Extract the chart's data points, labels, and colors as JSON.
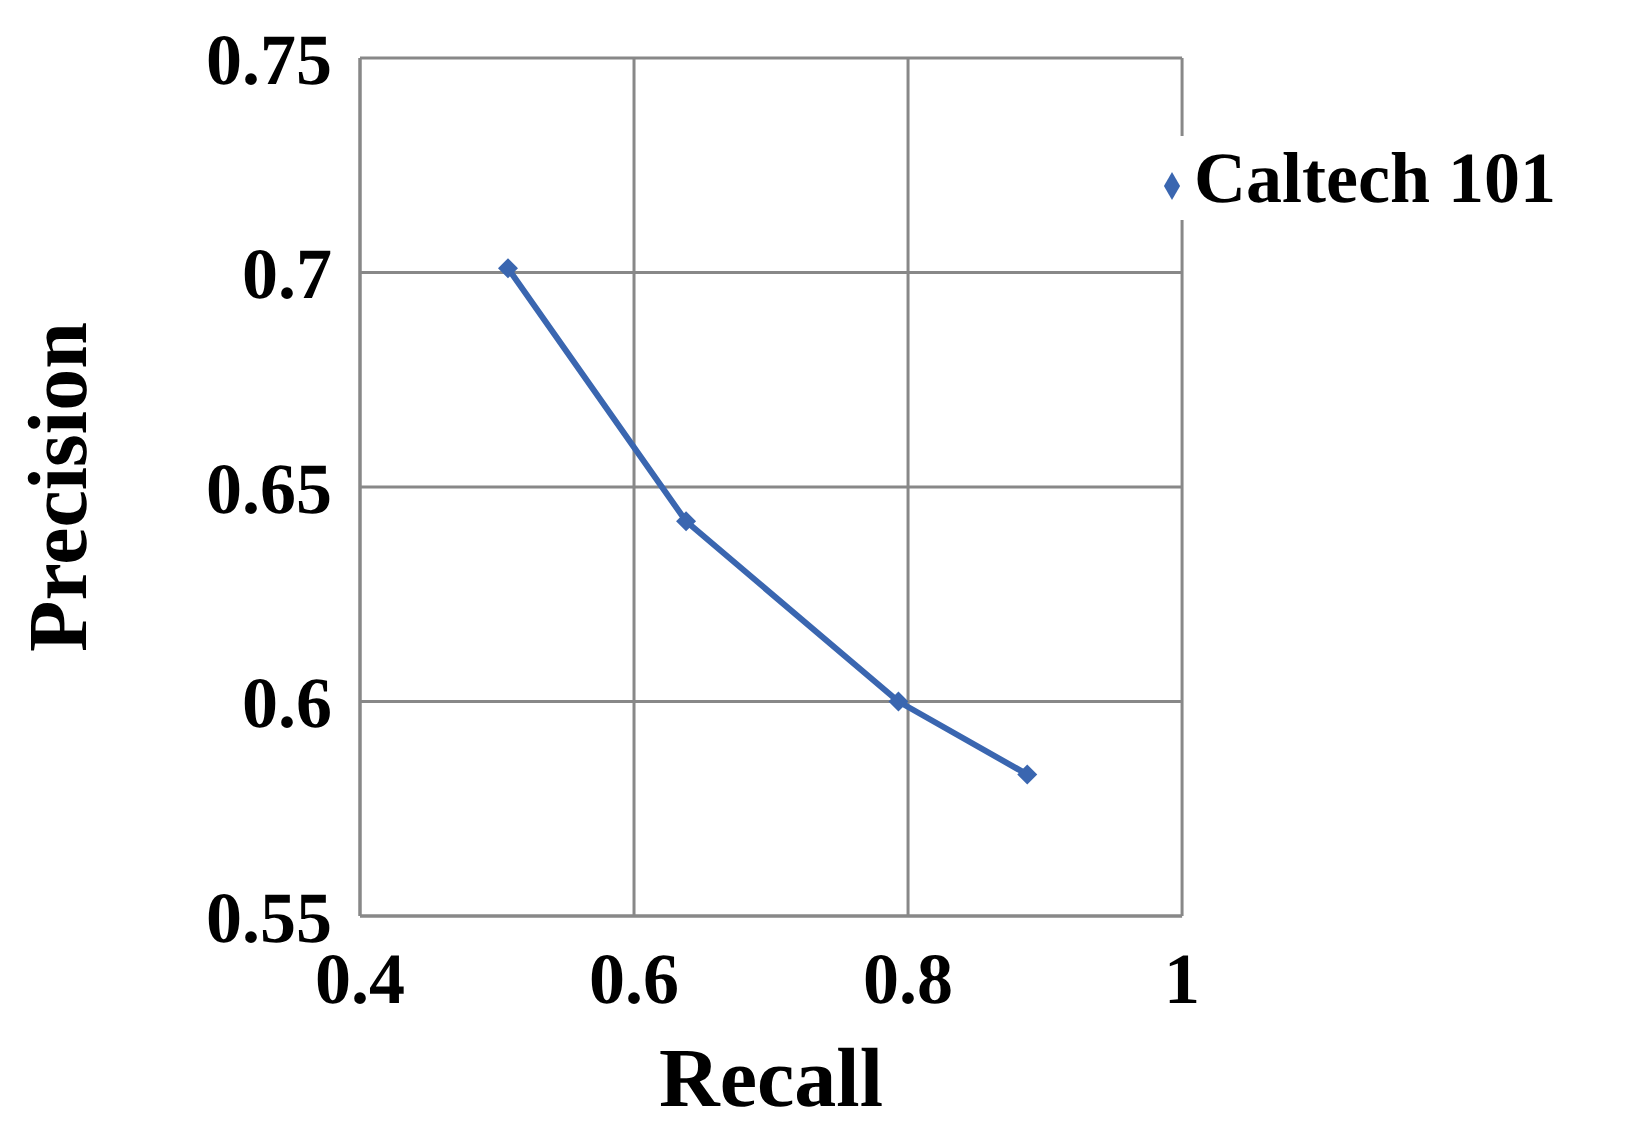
{
  "chart_data": {
    "type": "line",
    "xlabel": "Recall",
    "ylabel": "Precision",
    "xlim": [
      0.4,
      1
    ],
    "xticks": [
      0.4,
      0.6,
      0.8,
      1
    ],
    "ylim": [
      0.55,
      0.75
    ],
    "yticks": [
      0.55,
      0.6,
      0.65,
      0.7,
      0.75
    ],
    "grid": true,
    "legend": "top right",
    "marker": "diamond",
    "line_style": "solid",
    "series": [
      {
        "name": "Caltech 101",
        "color": "#3a66b0",
        "x": [
          0.508,
          0.638,
          0.793,
          0.887
        ],
        "values": [
          0.701,
          0.642,
          0.6,
          0.583
        ]
      }
    ]
  }
}
